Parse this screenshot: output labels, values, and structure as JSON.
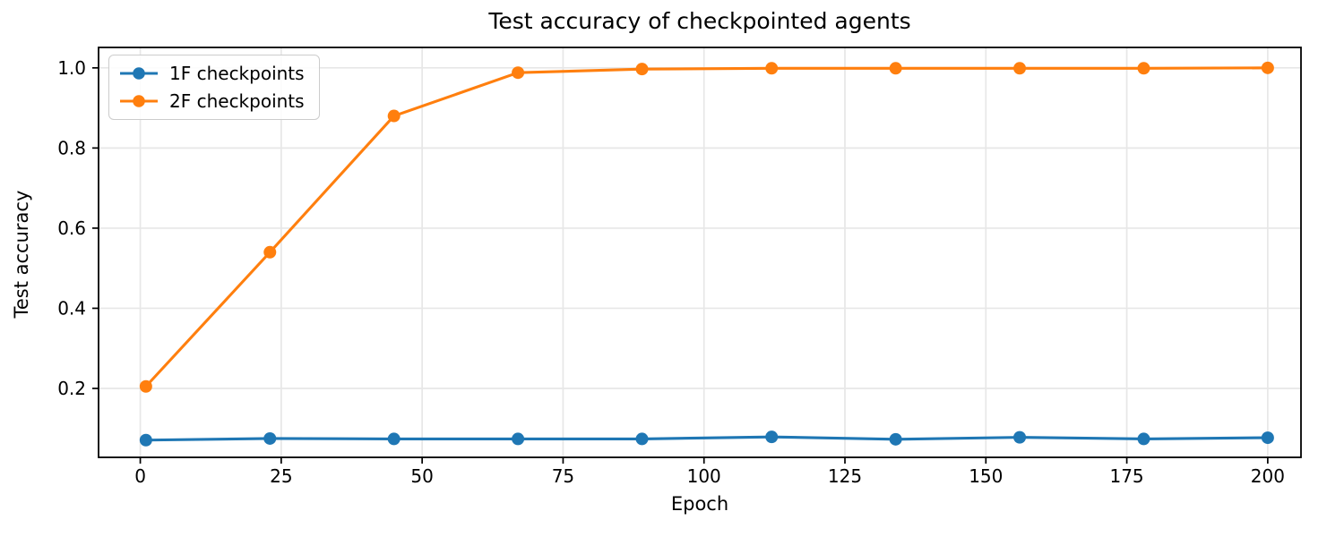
{
  "chart_data": {
    "type": "line",
    "title": "Test accuracy of checkpointed agents",
    "xlabel": "Epoch",
    "ylabel": "Test accuracy",
    "x": [
      1,
      23,
      45,
      67,
      89,
      112,
      134,
      156,
      178,
      200
    ],
    "series": [
      {
        "name": "1F checkpoints",
        "color": "#1f77b4",
        "values": [
          0.071,
          0.075,
          0.074,
          0.074,
          0.074,
          0.079,
          0.073,
          0.078,
          0.074,
          0.077
        ]
      },
      {
        "name": "2F checkpoints",
        "color": "#ff7f0e",
        "values": [
          0.205,
          0.54,
          0.88,
          0.988,
          0.997,
          0.999,
          0.999,
          0.999,
          0.999,
          1.0
        ]
      }
    ],
    "xticks": [
      {
        "value": 0,
        "label": "0"
      },
      {
        "value": 25,
        "label": "25"
      },
      {
        "value": 50,
        "label": "50"
      },
      {
        "value": 75,
        "label": "75"
      },
      {
        "value": 100,
        "label": "100"
      },
      {
        "value": 125,
        "label": "125"
      },
      {
        "value": 150,
        "label": "150"
      },
      {
        "value": 175,
        "label": "175"
      },
      {
        "value": 200,
        "label": "200"
      }
    ],
    "yticks": [
      {
        "value": 0.2,
        "label": "0.2"
      },
      {
        "value": 0.4,
        "label": "0.4"
      },
      {
        "value": 0.6,
        "label": "0.6"
      },
      {
        "value": 0.8,
        "label": "0.8"
      },
      {
        "value": 1.0,
        "label": "1.0"
      }
    ],
    "xlim": [
      -7.4,
      205.9
    ],
    "ylim": [
      0.028,
      1.051
    ],
    "grid": true,
    "legend_position": "upper-left",
    "marker": "circle",
    "colors": {
      "grid": "#e7e7e7",
      "spine": "#000000",
      "tick_label": "#000000"
    }
  }
}
